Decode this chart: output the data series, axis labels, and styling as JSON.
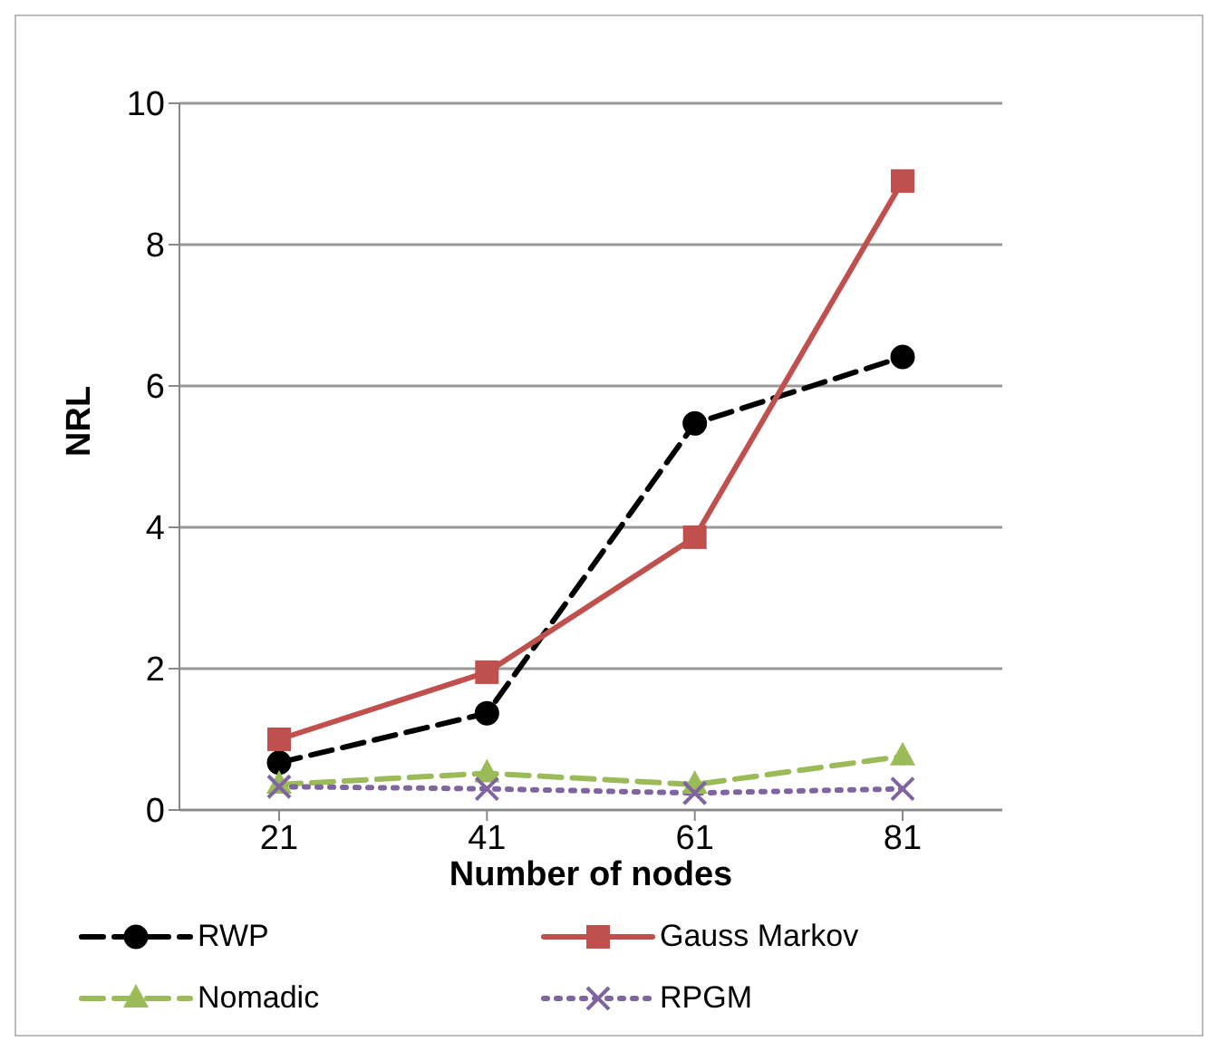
{
  "chart_data": {
    "type": "line",
    "xlabel": "Number of nodes",
    "ylabel": "NRL",
    "categories": [
      "21",
      "41",
      "61",
      "81"
    ],
    "ylim": [
      0,
      10
    ],
    "yticks": [
      0,
      2,
      4,
      6,
      8,
      10
    ],
    "grid": "y",
    "legend": "bottom",
    "series": [
      {
        "name": "RWP",
        "color": "#000000",
        "marker": "circle",
        "line_style": "dashed",
        "values": [
          0.67,
          1.37,
          5.47,
          6.41
        ]
      },
      {
        "name": "Gauss Markov",
        "color": "#c0504d",
        "marker": "square",
        "line_style": "solid",
        "values": [
          1.0,
          1.95,
          3.86,
          8.9
        ]
      },
      {
        "name": "Nomadic",
        "color": "#9bbb59",
        "marker": "triangle",
        "line_style": "dashed",
        "values": [
          0.36,
          0.52,
          0.36,
          0.76
        ]
      },
      {
        "name": "RPGM",
        "color": "#8064a2",
        "marker": "cross",
        "line_style": "dotted",
        "values": [
          0.33,
          0.3,
          0.24,
          0.3
        ]
      }
    ]
  }
}
